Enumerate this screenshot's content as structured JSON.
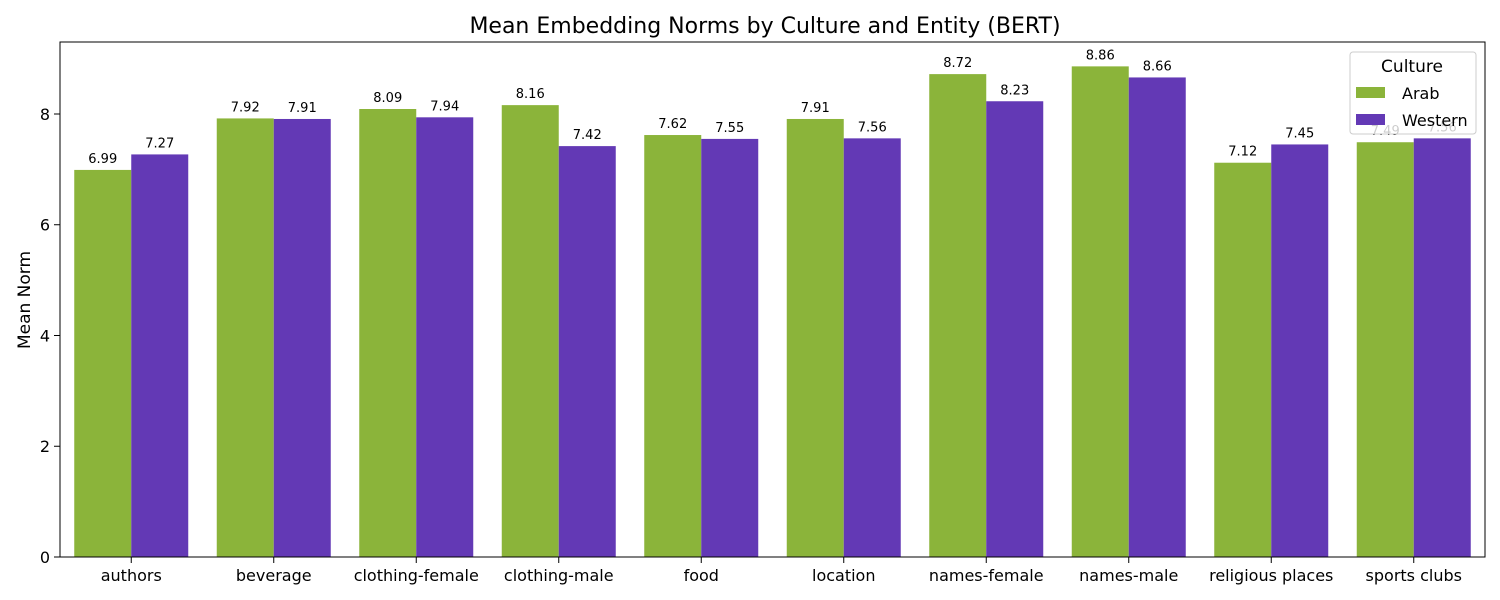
{
  "chart_data": {
    "type": "bar",
    "title": "Mean Embedding Norms by Culture and Entity (BERT)",
    "xlabel": "",
    "ylabel": "Mean Norm",
    "ylim": [
      0,
      9.3
    ],
    "yticks": [
      0,
      2,
      4,
      6,
      8
    ],
    "categories": [
      "authors",
      "beverage",
      "clothing-female",
      "clothing-male",
      "food",
      "location",
      "names-female",
      "names-male",
      "religious places",
      "sports clubs"
    ],
    "series": [
      {
        "name": "Arab",
        "color": "#8bb43a",
        "values": [
          6.99,
          7.92,
          8.09,
          8.16,
          7.62,
          7.91,
          8.72,
          8.86,
          7.12,
          7.49
        ]
      },
      {
        "name": "Western",
        "color": "#6339b5",
        "values": [
          7.27,
          7.91,
          7.94,
          7.42,
          7.55,
          7.56,
          8.23,
          8.66,
          7.45,
          7.56
        ]
      }
    ],
    "data_labels": [
      [
        "6.99",
        "7.92",
        "8.09",
        "8.16",
        "7.62",
        "7.91",
        "8.72",
        "8.86",
        "7.12",
        "7.49"
      ],
      [
        "7.27",
        "7.91",
        "7.94",
        "7.42",
        "7.55",
        "7.56",
        "8.23",
        "8.66",
        "7.45",
        "7.56"
      ]
    ],
    "legend": {
      "title": "Culture",
      "position": "top-right"
    },
    "grid": false
  }
}
